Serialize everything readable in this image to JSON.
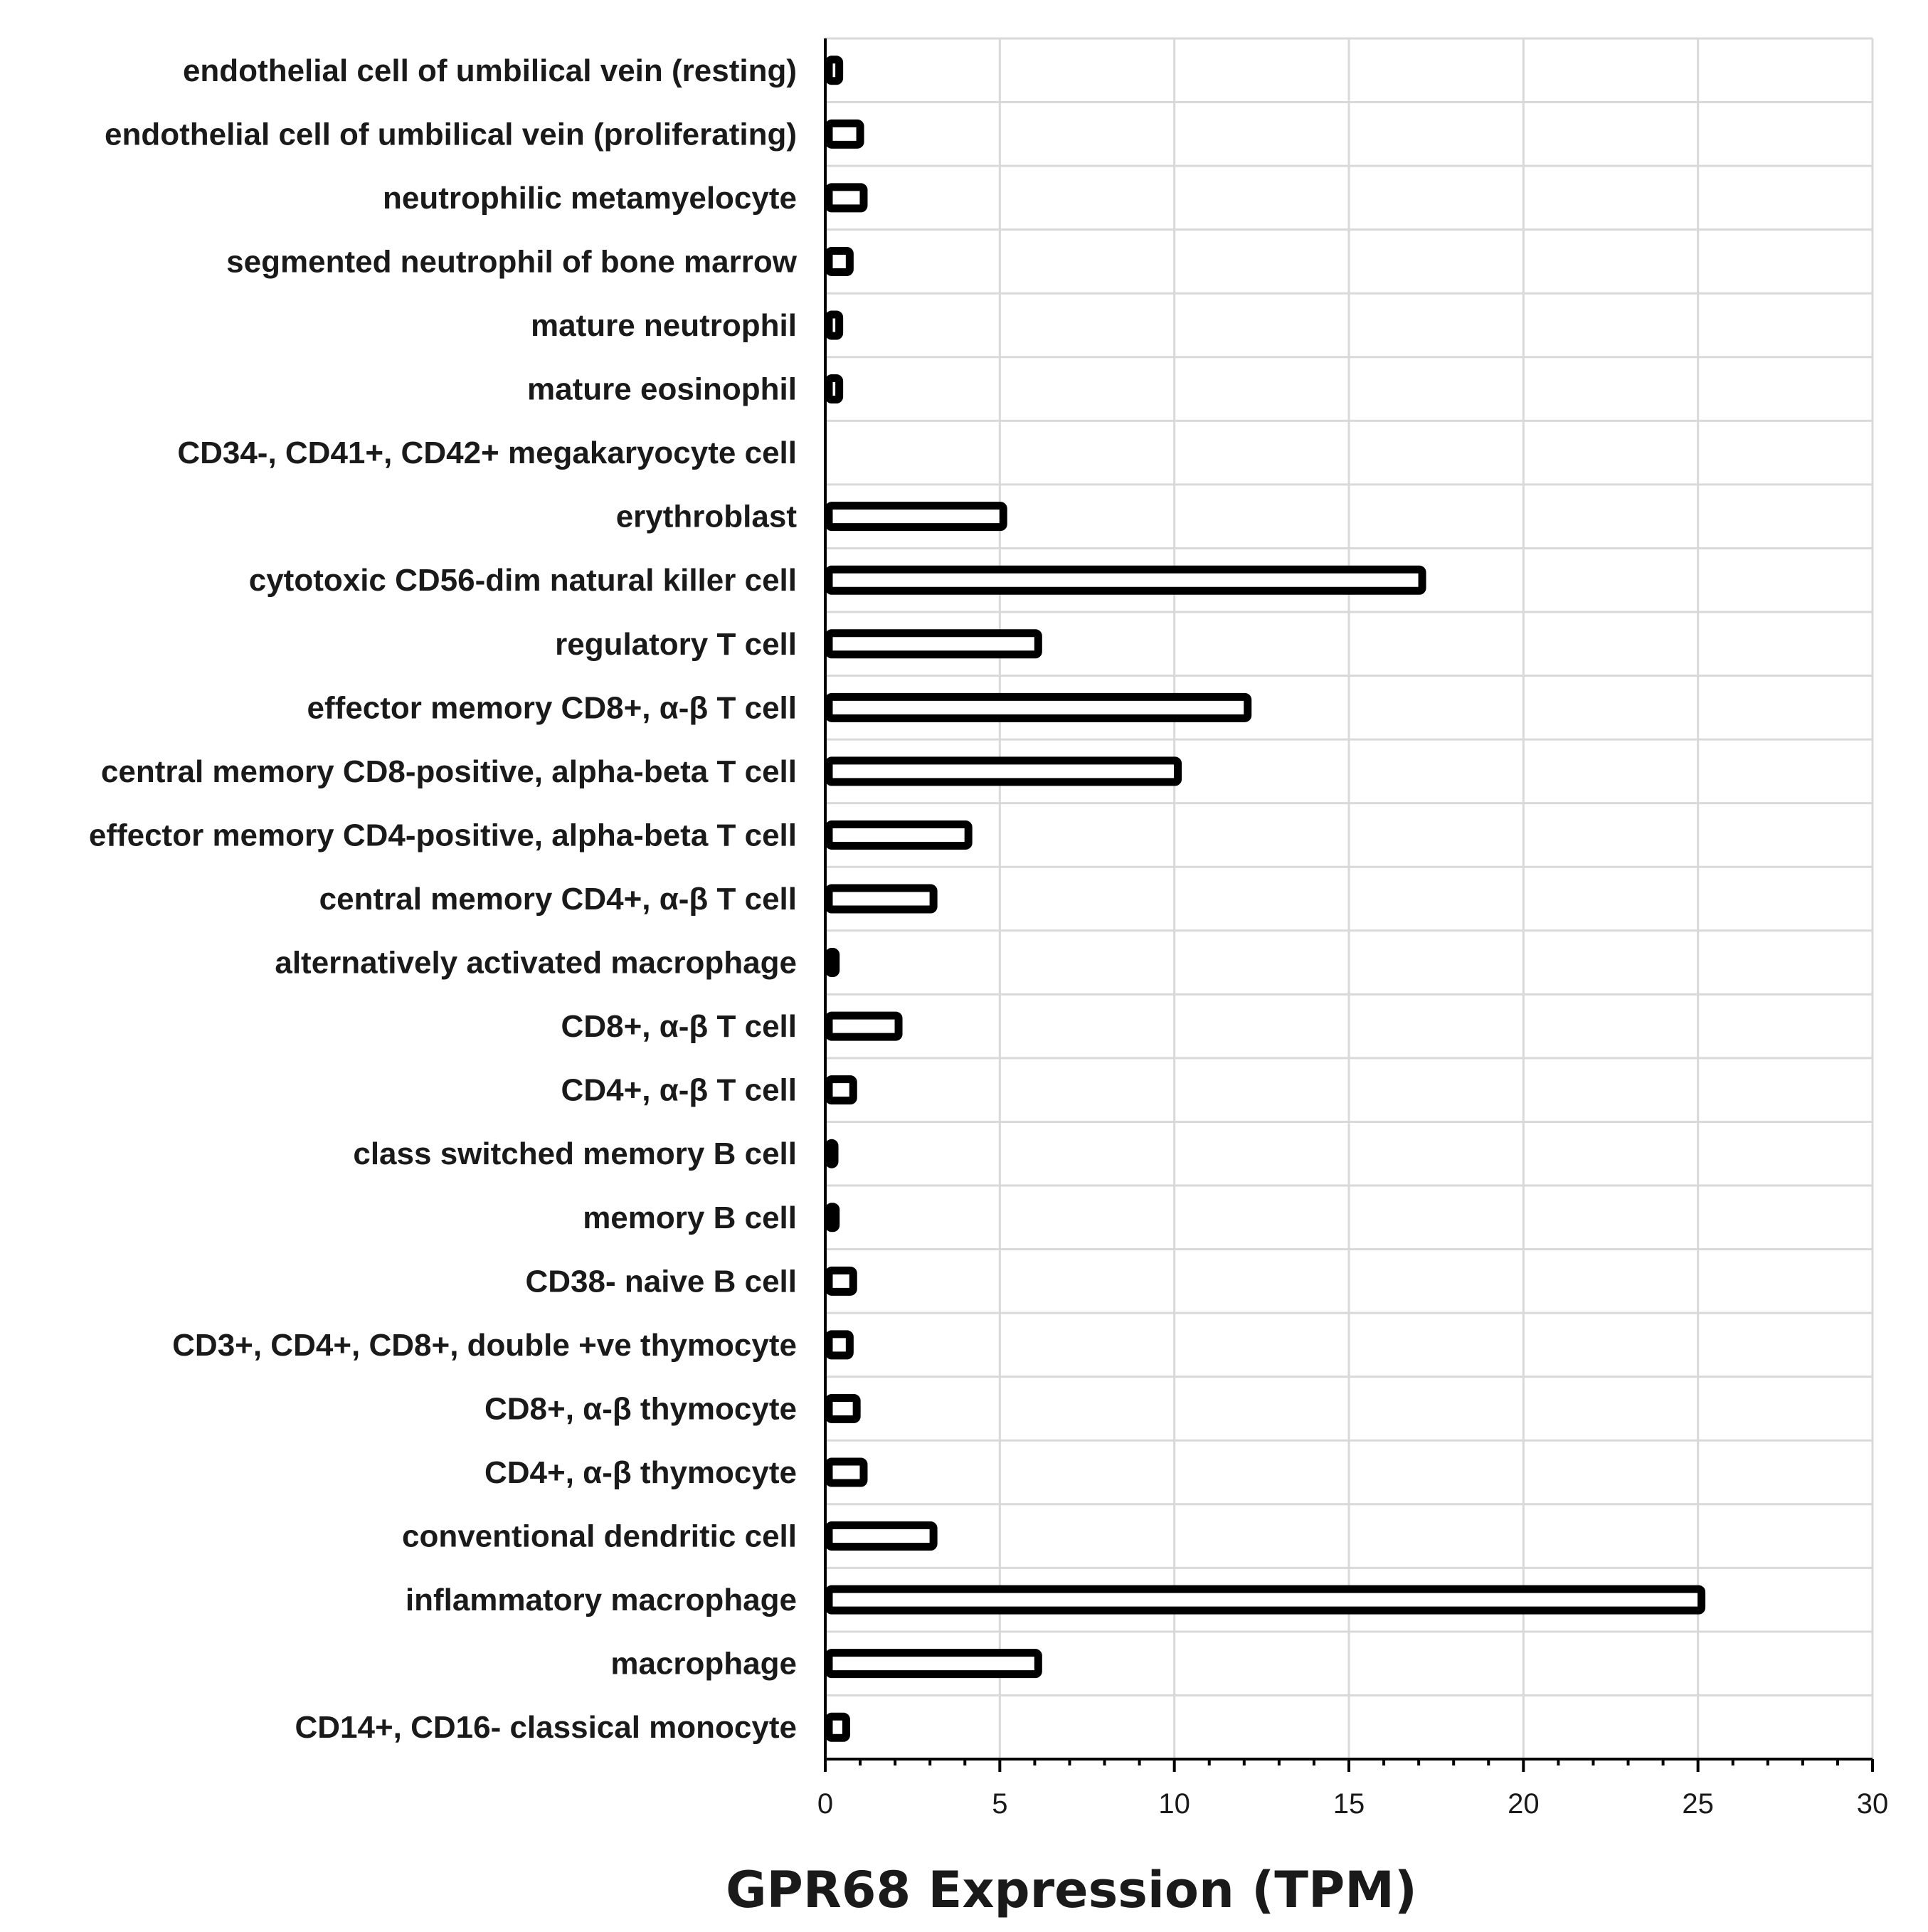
{
  "chart_data": {
    "type": "bar",
    "orientation": "horizontal",
    "xlabel": "GPR68 Expression (TPM)",
    "ylabel": "",
    "xlim": [
      0,
      30
    ],
    "xticks": [
      0,
      5,
      10,
      15,
      20,
      25,
      30
    ],
    "grid": true,
    "categories": [
      "endothelial cell of umbilical vein (resting)",
      "endothelial cell of umbilical vein (proliferating)",
      "neutrophilic metamyelocyte",
      "segmented neutrophil of bone marrow",
      "mature neutrophil",
      "mature eosinophil",
      "CD34-, CD41+, CD42+ megakaryocyte cell",
      "erythroblast",
      "cytotoxic CD56-dim natural killer cell",
      "regulatory T cell",
      "effector memory CD8+, α-β T cell",
      "central memory CD8-positive, alpha-beta T cell",
      "effector memory CD4-positive, alpha-beta T cell",
      "central memory CD4+, α-β T cell",
      "alternatively activated macrophage",
      "CD8+, α-β T cell",
      "CD4+, α-β T cell",
      "class switched memory B cell",
      "memory B cell",
      "CD38- naive B cell",
      "CD3+, CD4+, CD8+, double +ve thymocyte",
      "CD8+, α-β thymocyte",
      "CD4+, α-β thymocyte",
      "conventional dendritic cell",
      "inflammatory macrophage",
      "macrophage",
      "CD14+, CD16- classical monocyte"
    ],
    "values": [
      0.4,
      1.0,
      1.1,
      0.7,
      0.4,
      0.4,
      0,
      5.1,
      17.1,
      6.1,
      12.1,
      10.1,
      4.1,
      3.1,
      0.3,
      2.1,
      0.8,
      0.2,
      0.3,
      0.8,
      0.7,
      0.9,
      1.1,
      3.1,
      25.1,
      6.1,
      0.6
    ],
    "colors": {
      "bar_fill": "#ffffff",
      "bar_stroke": "#000000",
      "grid": "#d9d9d9"
    }
  }
}
